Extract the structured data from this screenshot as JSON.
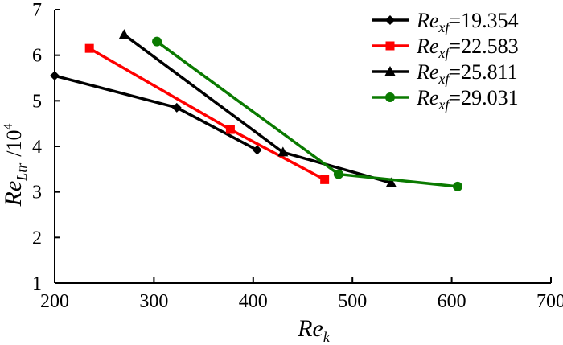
{
  "chart_data": {
    "type": "line",
    "title": "",
    "xlabel": {
      "main": "Re",
      "sub": "k"
    },
    "ylabel": {
      "main": "Re",
      "sub": "Ltr",
      "unit": "/10",
      "sup": "4"
    },
    "xlim": [
      200,
      700
    ],
    "ylim": [
      1,
      7
    ],
    "xticks": [
      "200",
      "300",
      "400",
      "500",
      "600",
      "700"
    ],
    "yticks": [
      "1",
      "2",
      "3",
      "4",
      "5",
      "6",
      "7"
    ],
    "grid": false,
    "legend_position": "top-right",
    "series": [
      {
        "name": "Re_xf=19.354",
        "legend": {
          "main": "Re",
          "sub": "xf",
          "value": "=19.354"
        },
        "color": "#000000",
        "marker": "diamond",
        "points": [
          [
            200,
            5.55
          ],
          [
            323,
            4.85
          ],
          [
            404,
            3.92
          ]
        ]
      },
      {
        "name": "Re_xf=22.583",
        "legend": {
          "main": "Re",
          "sub": "xf",
          "value": "=22.583"
        },
        "color": "#ff0000",
        "marker": "square",
        "points": [
          [
            235,
            6.15
          ],
          [
            377,
            4.37
          ],
          [
            472,
            3.27
          ]
        ]
      },
      {
        "name": "Re_xf=25.811",
        "legend": {
          "main": "Re",
          "sub": "xf",
          "value": "=25.811"
        },
        "color": "#000000",
        "marker": "triangle",
        "points": [
          [
            270,
            6.45
          ],
          [
            430,
            3.87
          ],
          [
            539,
            3.2
          ]
        ]
      },
      {
        "name": "Re_xf=29.031",
        "legend": {
          "main": "Re",
          "sub": "xf",
          "value": "=29.031"
        },
        "color": "#0a7a00",
        "marker": "circle",
        "points": [
          [
            303,
            6.3
          ],
          [
            486,
            3.39
          ],
          [
            606,
            3.12
          ]
        ]
      }
    ]
  }
}
